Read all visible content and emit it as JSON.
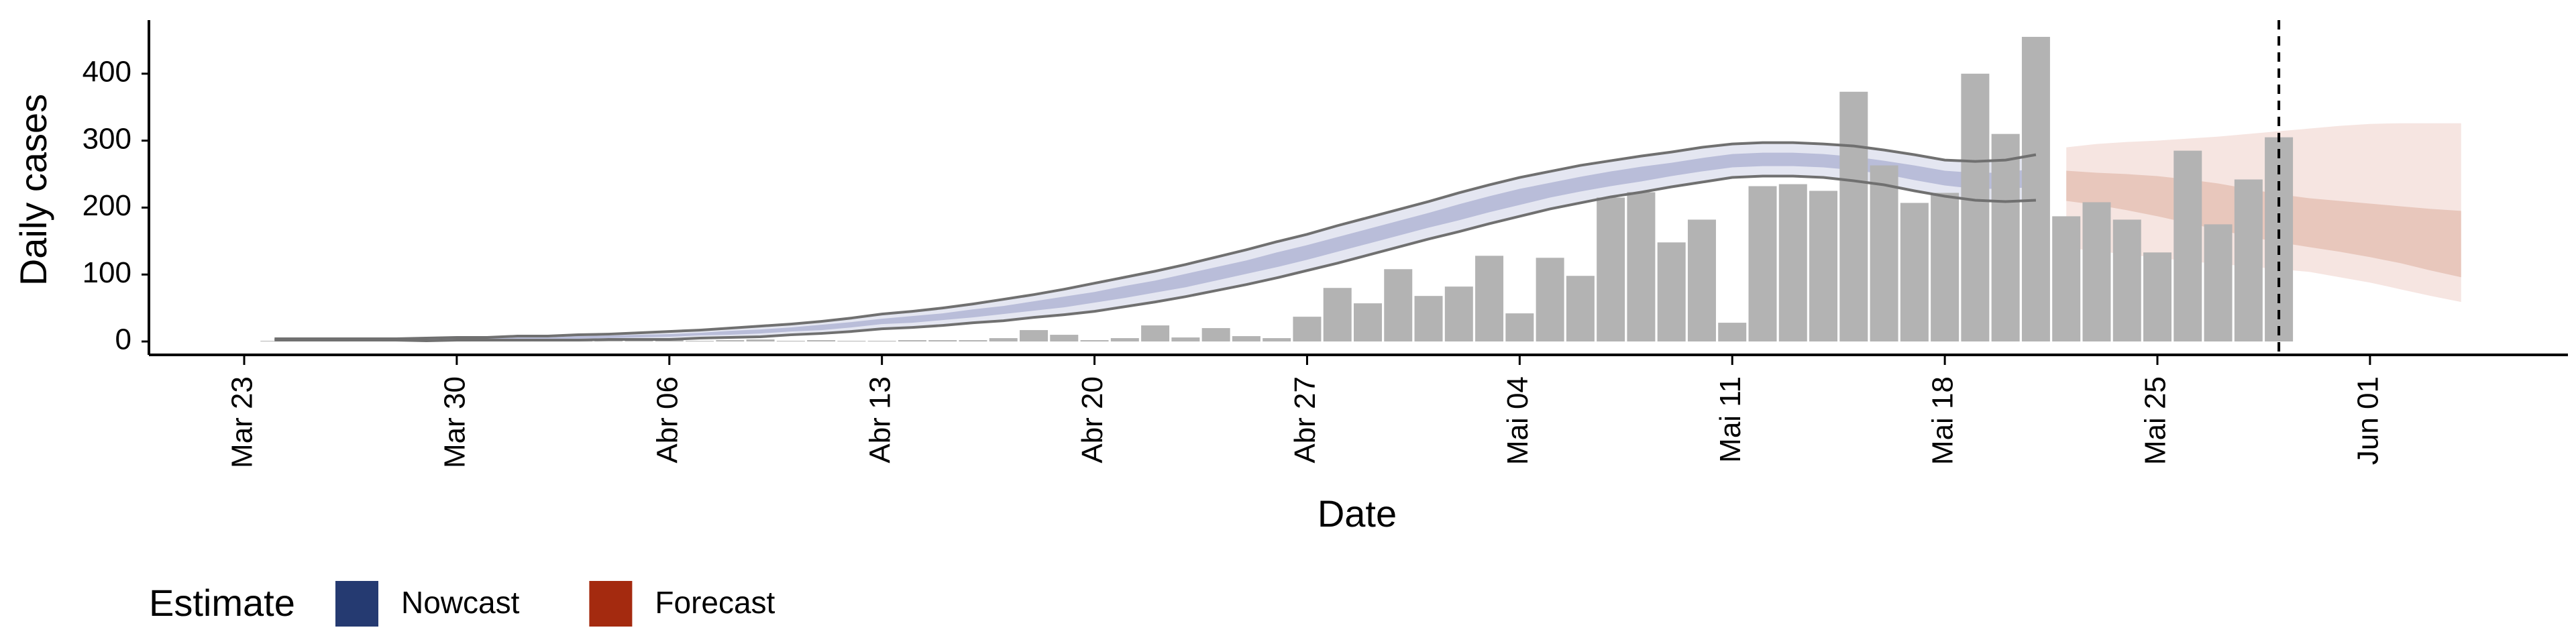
{
  "chart_data": {
    "type": "bar",
    "x_label": "Date",
    "y_label": "Daily cases",
    "legend_title": "Estimate",
    "categories": [
      "Mar 23",
      null,
      null,
      null,
      null,
      null,
      null,
      "Mar 30",
      null,
      null,
      null,
      null,
      null,
      null,
      "Abr 06",
      null,
      null,
      null,
      null,
      null,
      null,
      "Abr 13",
      null,
      null,
      null,
      null,
      null,
      null,
      "Abr 20",
      null,
      null,
      null,
      null,
      null,
      null,
      "Abr 27",
      null,
      null,
      null,
      null,
      null,
      null,
      "Mai 04",
      null,
      null,
      null,
      null,
      null,
      null,
      "Mai 11",
      null,
      null,
      null,
      null,
      null,
      null,
      "Mai 18",
      null,
      null,
      null,
      null,
      null,
      null,
      "Mai 25",
      null,
      null,
      null,
      null,
      null,
      null,
      "Jun 01",
      null,
      null,
      null
    ],
    "values": [
      null,
      1,
      0,
      1,
      0,
      1,
      2,
      1,
      0,
      1,
      1,
      2,
      1,
      1,
      2,
      1,
      2,
      3,
      1,
      2,
      1,
      1,
      2,
      2,
      2,
      5,
      17,
      10,
      2,
      5,
      24,
      6,
      20,
      8,
      5,
      37,
      80,
      57,
      108,
      68,
      82,
      128,
      42,
      125,
      98,
      215,
      223,
      148,
      182,
      28,
      232,
      235,
      225,
      373,
      263,
      207,
      222,
      400,
      310,
      455,
      187,
      208,
      182,
      133,
      285,
      175,
      242,
      305,
      null,
      null,
      null,
      null,
      null,
      null
    ],
    "color": "#b3b3b3",
    "ylim": [
      -20,
      480
    ],
    "yticks": [
      0,
      100,
      200,
      300,
      400
    ],
    "vline_index": 67,
    "bands": [
      {
        "name": "Nowcast",
        "color": "#253a71",
        "fill_outer": "#e4e6f1",
        "fill_inner": "#b9bdd9",
        "line_color": "#707070",
        "outer_upper": [
          null,
          4,
          4,
          4,
          4,
          4,
          5,
          6,
          6,
          8,
          8,
          10,
          11,
          13,
          15,
          17,
          20,
          23,
          26,
          30,
          35,
          41,
          45,
          50,
          56,
          63,
          70,
          78,
          87,
          96,
          105,
          115,
          126,
          137,
          149,
          160,
          173,
          185,
          197,
          209,
          222,
          234,
          245,
          254,
          263,
          270,
          277,
          283,
          290,
          295,
          297,
          297,
          295,
          292,
          286,
          279,
          271,
          269,
          271,
          279,
          null,
          null,
          null,
          null,
          null,
          null,
          null,
          null,
          null,
          null,
          null,
          null,
          null,
          null
        ],
        "outer_lower": [
          null,
          2,
          2,
          2,
          2,
          2,
          1,
          2,
          2,
          2,
          2,
          2,
          3,
          3,
          3,
          5,
          6,
          7,
          10,
          12,
          15,
          19,
          21,
          24,
          28,
          31,
          36,
          40,
          45,
          52,
          59,
          67,
          76,
          85,
          95,
          106,
          117,
          129,
          141,
          153,
          164,
          176,
          187,
          198,
          207,
          216,
          223,
          231,
          238,
          245,
          247,
          247,
          245,
          240,
          234,
          225,
          217,
          211,
          209,
          211,
          null,
          null,
          null,
          null,
          null,
          null,
          null,
          null,
          null,
          null,
          null,
          null,
          null,
          null
        ],
        "inner_upper": [
          null,
          3,
          3,
          3,
          3,
          3,
          4,
          5,
          5,
          6,
          6,
          8,
          9,
          10,
          11,
          13,
          16,
          18,
          21,
          25,
          29,
          34,
          38,
          42,
          48,
          53,
          60,
          67,
          74,
          83,
          91,
          101,
          111,
          121,
          133,
          144,
          156,
          168,
          180,
          192,
          205,
          217,
          228,
          237,
          246,
          254,
          261,
          267,
          274,
          280,
          282,
          282,
          280,
          276,
          270,
          263,
          255,
          252,
          252,
          259,
          null,
          null,
          null,
          null,
          null,
          null,
          null,
          null,
          null,
          null,
          null,
          null,
          null,
          null
        ],
        "inner_lower": [
          null,
          3,
          3,
          3,
          3,
          3,
          2,
          3,
          3,
          4,
          4,
          4,
          5,
          6,
          7,
          9,
          10,
          12,
          15,
          17,
          21,
          26,
          28,
          32,
          36,
          41,
          46,
          51,
          58,
          65,
          73,
          81,
          91,
          101,
          111,
          122,
          134,
          146,
          158,
          170,
          181,
          193,
          204,
          215,
          224,
          232,
          239,
          247,
          254,
          260,
          262,
          262,
          260,
          256,
          250,
          241,
          233,
          228,
          228,
          231,
          null,
          null,
          null,
          null,
          null,
          null,
          null,
          null,
          null,
          null,
          null,
          null,
          null,
          null
        ]
      },
      {
        "name": "Forecast",
        "color": "#a42a0f",
        "fill_outer": "#f6e5e1",
        "fill_inner": "#e8c7bc",
        "outer_upper": [
          null,
          null,
          null,
          null,
          null,
          null,
          null,
          null,
          null,
          null,
          null,
          null,
          null,
          null,
          null,
          null,
          null,
          null,
          null,
          null,
          null,
          null,
          null,
          null,
          null,
          null,
          null,
          null,
          null,
          null,
          null,
          null,
          null,
          null,
          null,
          null,
          null,
          null,
          null,
          null,
          null,
          null,
          null,
          null,
          null,
          null,
          null,
          null,
          null,
          null,
          null,
          null,
          null,
          null,
          null,
          null,
          null,
          null,
          null,
          null,
          290,
          295,
          298,
          300,
          303,
          306,
          310,
          314,
          318,
          322,
          325,
          326,
          326,
          326
        ],
        "outer_lower": [
          null,
          null,
          null,
          null,
          null,
          null,
          null,
          null,
          null,
          null,
          null,
          null,
          null,
          null,
          null,
          null,
          null,
          null,
          null,
          null,
          null,
          null,
          null,
          null,
          null,
          null,
          null,
          null,
          null,
          null,
          null,
          null,
          null,
          null,
          null,
          null,
          null,
          null,
          null,
          null,
          null,
          null,
          null,
          null,
          null,
          null,
          null,
          null,
          null,
          null,
          null,
          null,
          null,
          null,
          null,
          null,
          null,
          null,
          null,
          null,
          140,
          135,
          130,
          125,
          120,
          116,
          112,
          108,
          104,
          96,
          88,
          78,
          68,
          59
        ],
        "inner_upper": [
          null,
          null,
          null,
          null,
          null,
          null,
          null,
          null,
          null,
          null,
          null,
          null,
          null,
          null,
          null,
          null,
          null,
          null,
          null,
          null,
          null,
          null,
          null,
          null,
          null,
          null,
          null,
          null,
          null,
          null,
          null,
          null,
          null,
          null,
          null,
          null,
          null,
          null,
          null,
          null,
          null,
          null,
          null,
          null,
          null,
          null,
          null,
          null,
          null,
          null,
          null,
          null,
          null,
          null,
          null,
          null,
          null,
          null,
          null,
          null,
          255,
          252,
          250,
          247,
          242,
          236,
          228,
          220,
          214,
          210,
          206,
          202,
          198,
          195
        ],
        "inner_lower": [
          null,
          null,
          null,
          null,
          null,
          null,
          null,
          null,
          null,
          null,
          null,
          null,
          null,
          null,
          null,
          null,
          null,
          null,
          null,
          null,
          null,
          null,
          null,
          null,
          null,
          null,
          null,
          null,
          null,
          null,
          null,
          null,
          null,
          null,
          null,
          null,
          null,
          null,
          null,
          null,
          null,
          null,
          null,
          null,
          null,
          null,
          null,
          null,
          null,
          null,
          null,
          null,
          null,
          null,
          null,
          null,
          null,
          null,
          null,
          null,
          210,
          204,
          196,
          187,
          177,
          167,
          157,
          148,
          141,
          134,
          126,
          117,
          106,
          96
        ]
      }
    ]
  }
}
